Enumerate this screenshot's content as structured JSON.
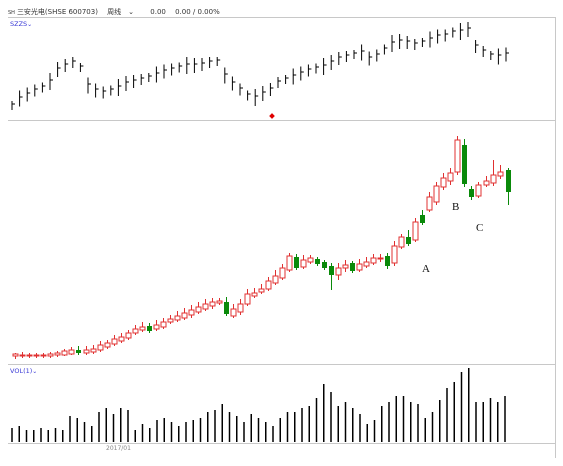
{
  "header": {
    "symbol": "SH",
    "stock": "三安光电(SHSE 600703)",
    "period": "周线",
    "price": "0.00",
    "change": "0.00 / 0.00%"
  },
  "index_pane": {
    "label": "SZZS"
  },
  "volume_pane": {
    "label": "VOL(1)"
  },
  "date_label": "2017/01",
  "annotations": [
    "A",
    "B",
    "C"
  ],
  "colors": {
    "up": "#e03030",
    "down": "#0a8a0a",
    "bar": "#000000",
    "label": "#3a3ad6",
    "marker": "#e00000"
  }
}
